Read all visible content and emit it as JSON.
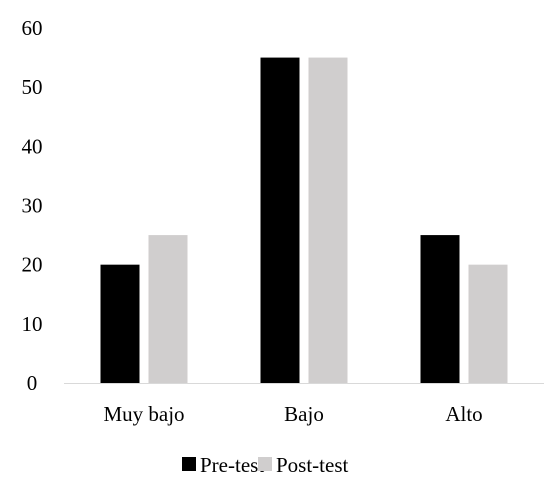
{
  "chart_data": {
    "type": "bar",
    "title": "",
    "xlabel": "",
    "ylabel": "",
    "categories": [
      "Muy bajo",
      "Bajo",
      "Alto"
    ],
    "series": [
      {
        "name": "Pre-test",
        "values": [
          20,
          55,
          25
        ],
        "color": "#000000"
      },
      {
        "name": "Post-test",
        "values": [
          25,
          55,
          20
        ],
        "color": "#d0cece"
      }
    ],
    "ylim": [
      0,
      60
    ],
    "yticks": [
      0,
      10,
      20,
      30,
      40,
      50,
      60
    ],
    "grid": false,
    "legend_position": "bottom"
  }
}
